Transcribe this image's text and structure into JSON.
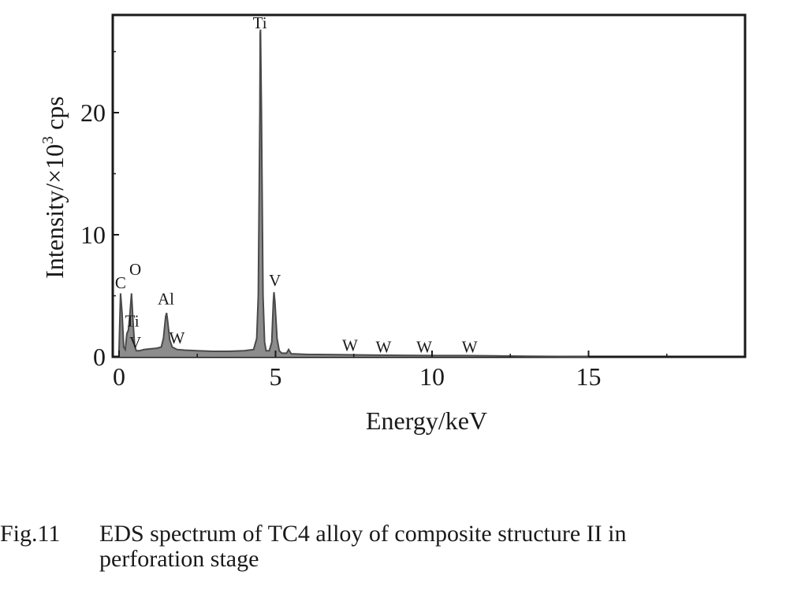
{
  "chart_data": {
    "type": "line",
    "xlabel": "Energy/keV",
    "ylabel_prefix": "Intensity/×10",
    "ylabel_sup": "3",
    "ylabel_suffix": " cps",
    "xlim": [
      -0.2,
      20
    ],
    "ylim": [
      0,
      28
    ],
    "x_ticks": [
      0,
      5,
      10,
      15
    ],
    "y_ticks": [
      0,
      10,
      20
    ],
    "grid": false,
    "series": [
      {
        "x": [
          0.0,
          0.05,
          0.1,
          0.15,
          0.2,
          0.25,
          0.3,
          0.35,
          0.4,
          0.45,
          0.5,
          0.55,
          0.65,
          0.8,
          1.0,
          1.2,
          1.35,
          1.42,
          1.49,
          1.52,
          1.55,
          1.62,
          1.7,
          1.85,
          2.1,
          2.5,
          3.0,
          3.5,
          4.0,
          4.3,
          4.4,
          4.45,
          4.5,
          4.51,
          4.52,
          4.55,
          4.6,
          4.65,
          4.7,
          4.8,
          4.88,
          4.93,
          4.95,
          4.98,
          5.05,
          5.12,
          5.2,
          5.35,
          5.42,
          5.5,
          6.0,
          7.0,
          8.0,
          9.0,
          10.0,
          11.0,
          12.0,
          13.0,
          14.0,
          15.0
        ],
        "y": [
          0.3,
          5.2,
          3.5,
          0.8,
          0.6,
          1.9,
          2.2,
          3.5,
          5.2,
          2.8,
          0.9,
          0.5,
          0.5,
          0.6,
          0.65,
          0.7,
          0.8,
          1.5,
          3.3,
          3.6,
          3.0,
          1.4,
          0.8,
          0.6,
          0.55,
          0.5,
          0.45,
          0.45,
          0.5,
          0.6,
          1.5,
          5.0,
          20.0,
          26.5,
          26.8,
          20.0,
          5.0,
          1.2,
          0.5,
          0.5,
          1.2,
          4.5,
          5.3,
          4.5,
          1.5,
          0.5,
          0.3,
          0.3,
          0.6,
          0.25,
          0.2,
          0.18,
          0.15,
          0.12,
          0.1,
          0.1,
          0.08,
          0.05,
          0.03,
          0.02
        ]
      }
    ],
    "annotations": [
      {
        "text": "C",
        "x": 0.05,
        "y": 5.6
      },
      {
        "text": "O",
        "x": 0.52,
        "y": 6.7
      },
      {
        "text": "Ti",
        "x": 0.42,
        "y": 2.5
      },
      {
        "text": "V",
        "x": 0.52,
        "y": 0.7
      },
      {
        "text": "Al",
        "x": 1.5,
        "y": 4.3
      },
      {
        "text": "W",
        "x": 1.85,
        "y": 1.1
      },
      {
        "text": "Ti",
        "x": 4.5,
        "y": 26.9
      },
      {
        "text": "V",
        "x": 4.98,
        "y": 5.8
      },
      {
        "text": "W",
        "x": 7.38,
        "y": 0.5
      },
      {
        "text": "W",
        "x": 8.45,
        "y": 0.35
      },
      {
        "text": "W",
        "x": 9.75,
        "y": 0.35
      },
      {
        "text": "W",
        "x": 11.2,
        "y": 0.35
      }
    ]
  },
  "caption": {
    "number": "Fig.11",
    "text_line1": "EDS spectrum of TC4 alloy of composite structure II in",
    "text_line2": "perforation stage"
  },
  "colors": {
    "spectrum_fill": "#8c8c8c",
    "spectrum_line": "#4a4a4a",
    "axes": "#1a1a1a"
  }
}
